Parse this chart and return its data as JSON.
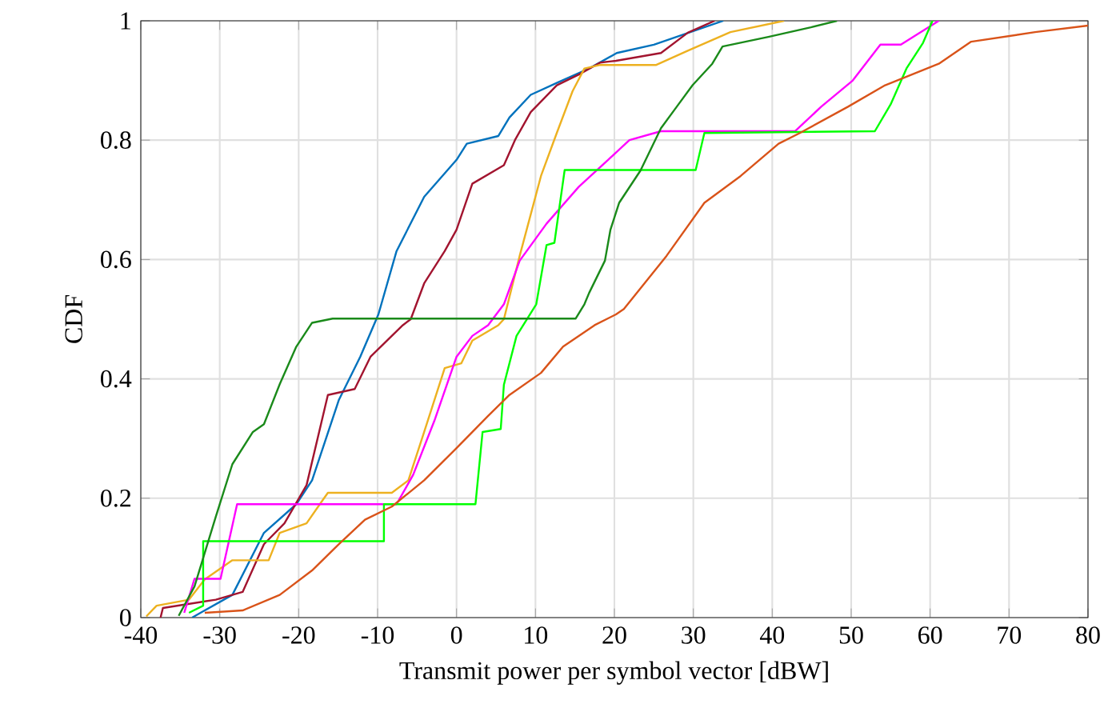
{
  "chart_data": {
    "type": "line",
    "xlabel": "Transmit power per symbol vector [dBW]",
    "ylabel": "CDF",
    "xlim": [
      -40,
      80
    ],
    "ylim": [
      0,
      1
    ],
    "xticks": [
      -40,
      -30,
      -20,
      -10,
      0,
      10,
      20,
      30,
      40,
      50,
      60,
      70,
      80
    ],
    "yticks": [
      0,
      0.2,
      0.4,
      0.6,
      0.8,
      1
    ],
    "grid": true,
    "series": [
      {
        "color": "#0072bd",
        "x": [
          -33.5,
          -31.9,
          -28.4,
          -24.4,
          -20.3,
          -18.3,
          -14.9,
          -12.2,
          -9.9,
          -7.6,
          -4.1,
          0,
          1.3,
          5.3,
          6.7,
          9.4,
          12.7,
          16.8,
          20.3,
          25,
          33.8
        ],
        "values": [
          0,
          0.012,
          0.038,
          0.142,
          0.19,
          0.23,
          0.365,
          0.437,
          0.508,
          0.614,
          0.705,
          0.767,
          0.794,
          0.807,
          0.838,
          0.876,
          0.896,
          0.92,
          0.946,
          0.96,
          1
        ]
      },
      {
        "color": "#a2142f",
        "x": [
          -37.5,
          -37.2,
          -30.5,
          -27.1,
          -24.4,
          -21.8,
          -19,
          -16.3,
          -12.9,
          -10.9,
          -6.8,
          -5.8,
          -4.1,
          -1.5,
          0,
          2,
          6,
          7.4,
          9.4,
          12.7,
          15.5,
          18.2,
          20.2,
          25.9,
          29.3,
          32.7
        ],
        "values": [
          0,
          0.016,
          0.03,
          0.043,
          0.123,
          0.158,
          0.222,
          0.373,
          0.383,
          0.437,
          0.49,
          0.5,
          0.56,
          0.614,
          0.65,
          0.727,
          0.758,
          0.8,
          0.847,
          0.892,
          0.91,
          0.93,
          0.933,
          0.946,
          0.98,
          1
        ]
      },
      {
        "color": "#edb120",
        "x": [
          -39.3,
          -38,
          -33.9,
          -31.9,
          -28.4,
          -23.8,
          -22.4,
          -19,
          -17,
          -16.3,
          -8.2,
          -6.1,
          -4.1,
          -1.5,
          0.6,
          2,
          5.3,
          6,
          8,
          10.7,
          12.7,
          14.7,
          16.2,
          18.2,
          25.3,
          29.3,
          34.7,
          41.5
        ],
        "values": [
          0.002,
          0.02,
          0.03,
          0.064,
          0.096,
          0.096,
          0.142,
          0.158,
          0.196,
          0.209,
          0.209,
          0.23,
          0.311,
          0.418,
          0.426,
          0.464,
          0.49,
          0.5,
          0.606,
          0.74,
          0.812,
          0.882,
          0.92,
          0.926,
          0.926,
          0.95,
          0.981,
          1
        ]
      },
      {
        "color": "#ff00ff",
        "x": [
          -34.5,
          -33.2,
          -29.9,
          -27.8,
          -7.6,
          -5.5,
          -2.8,
          0,
          2,
          4,
          6,
          8,
          11.4,
          15.5,
          19.2,
          21.9,
          25.9,
          42.9,
          46.2,
          50.2,
          53.7,
          56.3,
          61.1
        ],
        "values": [
          0.008,
          0.065,
          0.065,
          0.19,
          0.19,
          0.239,
          0.33,
          0.437,
          0.472,
          0.49,
          0.525,
          0.598,
          0.66,
          0.722,
          0.767,
          0.8,
          0.815,
          0.815,
          0.856,
          0.9,
          0.96,
          0.96,
          1
        ]
      },
      {
        "color": "#00ff00",
        "x": [
          -33.9,
          -32.1,
          -32.1,
          -9.2,
          -9.2,
          2.4,
          3.3,
          5.6,
          6,
          7.6,
          10.1,
          11.4,
          12.4,
          13.7,
          30.3,
          31.4,
          53,
          55,
          57,
          59.1,
          60.3
        ],
        "values": [
          0.008,
          0.02,
          0.128,
          0.128,
          0.19,
          0.19,
          0.311,
          0.316,
          0.39,
          0.472,
          0.525,
          0.624,
          0.628,
          0.75,
          0.75,
          0.812,
          0.815,
          0.86,
          0.92,
          0.963,
          1
        ]
      },
      {
        "color": "#1a8a1a",
        "x": [
          -35.2,
          -33.2,
          -30.5,
          -28.4,
          -25.8,
          -24.4,
          -22.4,
          -20.3,
          -18.3,
          -15.7,
          15.1,
          16.2,
          16.8,
          18.8,
          19.5,
          20.6,
          23.3,
          25.9,
          27.9,
          29.9,
          32.4,
          33.7,
          39.5,
          44.9,
          48.2
        ],
        "values": [
          0.003,
          0.052,
          0.169,
          0.257,
          0.311,
          0.324,
          0.391,
          0.454,
          0.494,
          0.501,
          0.501,
          0.525,
          0.544,
          0.598,
          0.65,
          0.695,
          0.749,
          0.82,
          0.856,
          0.892,
          0.928,
          0.957,
          0.973,
          0.989,
          1
        ]
      },
      {
        "color": "#d95319",
        "x": [
          -31.9,
          -27.1,
          -22.4,
          -18.3,
          -14.9,
          -11.6,
          -8.2,
          -4.1,
          0,
          4,
          6.7,
          10.7,
          13.5,
          17.5,
          20.2,
          21.2,
          26.6,
          31.4,
          36,
          40.8,
          43.5,
          49.6,
          54.3,
          61.1,
          65.2,
          73.3,
          80
        ],
        "values": [
          0.008,
          0.012,
          0.038,
          0.079,
          0.123,
          0.164,
          0.186,
          0.23,
          0.284,
          0.338,
          0.373,
          0.41,
          0.454,
          0.49,
          0.508,
          0.517,
          0.606,
          0.695,
          0.74,
          0.794,
          0.812,
          0.856,
          0.892,
          0.928,
          0.965,
          0.981,
          0.992
        ]
      }
    ]
  }
}
